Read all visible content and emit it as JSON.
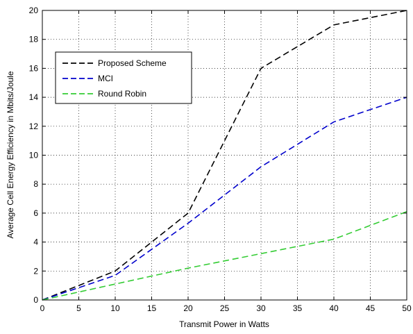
{
  "chart_data": {
    "type": "line",
    "title": "",
    "xlabel": "Transmit Power in Watts",
    "ylabel": "Average Cell Energy Efficiency in Mbits/Joule",
    "xlim": [
      0,
      50
    ],
    "ylim": [
      0,
      20
    ],
    "xticks": [
      0,
      5,
      10,
      15,
      20,
      25,
      30,
      35,
      40,
      45,
      50
    ],
    "yticks": [
      0,
      2,
      4,
      6,
      8,
      10,
      12,
      14,
      16,
      18,
      20
    ],
    "grid": true,
    "legend_position": "upper-left",
    "x": [
      0,
      10,
      20,
      30,
      40,
      50
    ],
    "series": [
      {
        "name": "Proposed Scheme",
        "values": [
          0,
          2.0,
          6.0,
          16.0,
          19.0,
          20.0
        ],
        "color": "#000000",
        "line_style": "dashed"
      },
      {
        "name": "MCI",
        "values": [
          0,
          1.7,
          5.3,
          9.2,
          12.3,
          14.0
        ],
        "color": "#0000cc",
        "line_style": "dashed"
      },
      {
        "name": "Round Robin",
        "values": [
          0,
          1.1,
          2.2,
          3.2,
          4.2,
          6.1
        ],
        "color": "#33cc33",
        "line_style": "dashed"
      }
    ]
  }
}
